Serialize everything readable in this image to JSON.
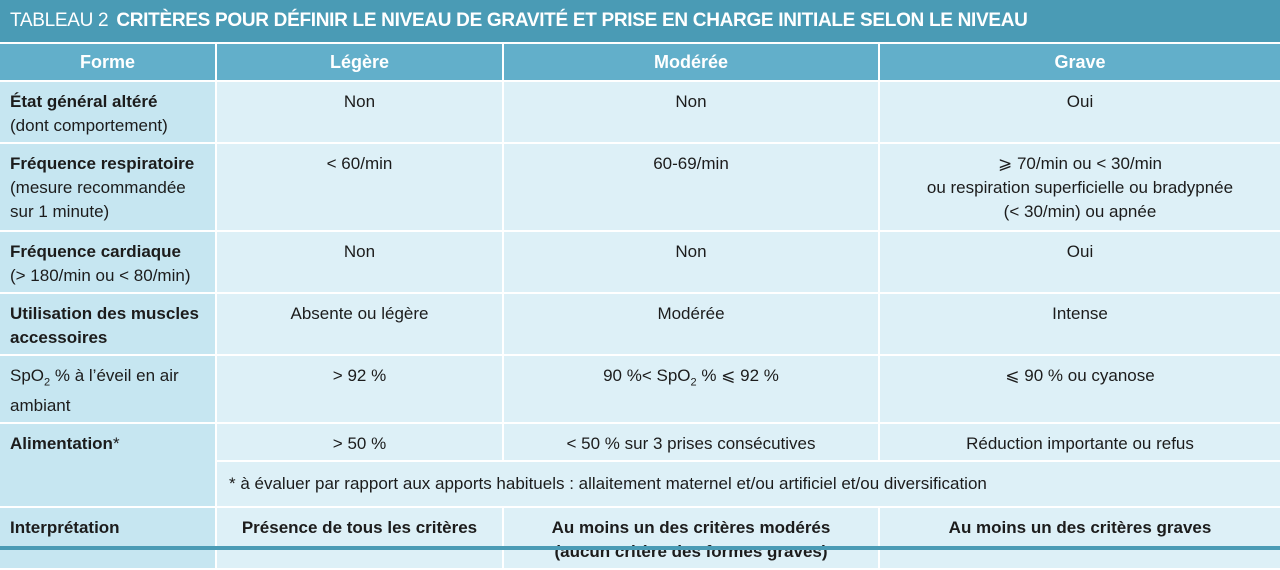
{
  "title": {
    "label": "TABLEAU 2",
    "text": "CRITÈRES POUR DÉFINIR LE NIVEAU DE GRAVITÉ ET PRISE EN CHARGE INITIALE SELON LE NIVEAU"
  },
  "headers": [
    "Forme",
    "Légère",
    "Modérée",
    "Grave"
  ],
  "rows": [
    {
      "label": "État général altéré",
      "sub": "(dont comportement)",
      "light": "Non",
      "moderate": "Non",
      "severe": "Oui"
    },
    {
      "label": "Fréquence respiratoire",
      "sub": "(mesure recommandée sur 1 minute)",
      "light": "< 60/min",
      "moderate": "60-69/min",
      "severe_lines": [
        "⩾ 70/min ou < 30/min",
        "ou respiration superficielle ou bradypnée",
        "(< 30/min) ou apnée"
      ]
    },
    {
      "label": "Fréquence cardiaque",
      "sub": "(> 180/min ou < 80/min)",
      "light": "Non",
      "moderate": "Non",
      "severe": "Oui"
    },
    {
      "label": "Utilisation des muscles accessoires",
      "light": "Absente ou légère",
      "moderate": "Modérée",
      "severe": "Intense"
    },
    {
      "label_pre": "SpO",
      "label_sub": "2",
      "label_post": " % à l’éveil en air ambiant",
      "light": "> 92 %",
      "moderate_pre": "90 %< SpO",
      "moderate_sub": "2",
      "moderate_post": " % ⩽ 92 %",
      "severe": "⩽ 90 % ou cyanose"
    },
    {
      "label": "Alimentation",
      "label_star": "*",
      "light": "> 50 %",
      "moderate": "< 50 % sur 3 prises consécutives",
      "severe": "Réduction importante ou refus"
    }
  ],
  "footnote": "* à évaluer par rapport aux apports habituels : allaitement maternel et/ou artificiel et/ou diversification",
  "interpretation": {
    "label": "Interprétation",
    "light": "Présence de tous les critères",
    "moderate_lines": [
      "Au moins un des critères modérés",
      "(aucun critère des formes graves)"
    ],
    "severe": "Au moins un des critères graves"
  },
  "colors": {
    "title_bg": "#4a9bb5",
    "header_bg": "#62afca",
    "cell_bg": "#ddf0f7",
    "rowhead_bg": "#c6e6f1"
  }
}
